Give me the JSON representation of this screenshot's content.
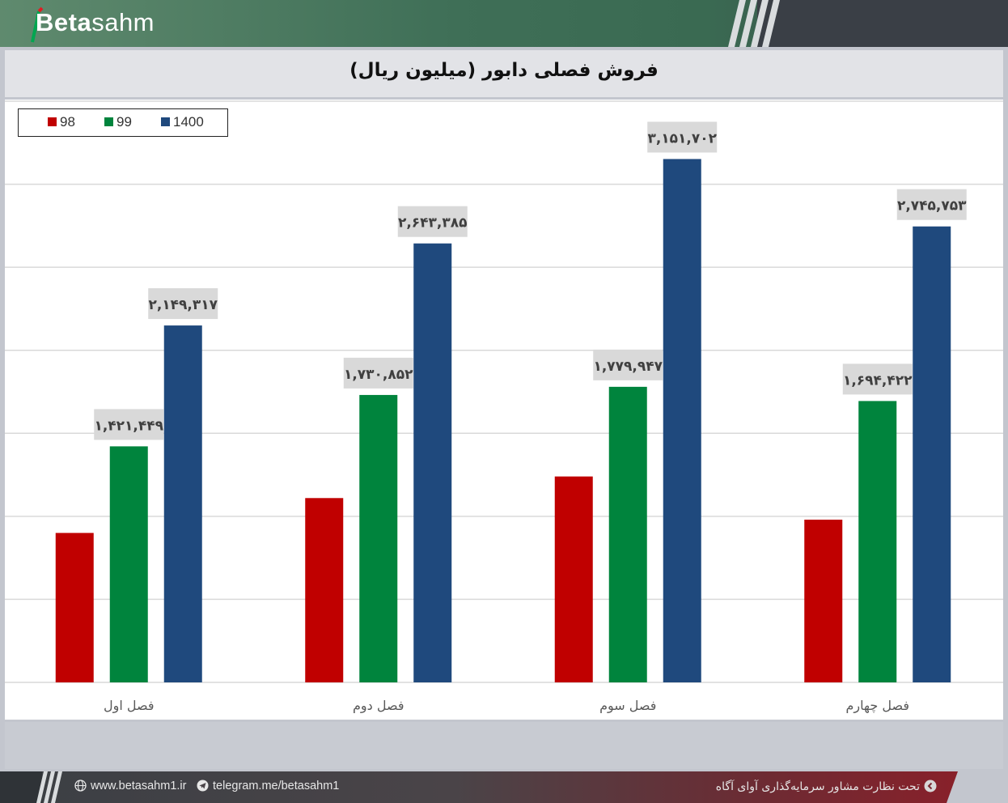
{
  "brand": {
    "logo_prefix": "Beta",
    "logo_suffix": "sahm"
  },
  "colors": {
    "series_98": "#c00000",
    "series_99": "#00843d",
    "series_1400": "#1f497d",
    "label_bg": "#d9d9d9",
    "grid": "#d9d9d9"
  },
  "footer": {
    "website": "www.betasahm1.ir",
    "telegram": "telegram.me/betasahm1",
    "supervision": "تحت نظارت مشاور سرمایه‌گذاری آوای آگاه",
    "icons": [
      "globe-icon",
      "telegram-icon",
      "chevron-left-icon"
    ]
  },
  "chart_data": {
    "type": "bar",
    "title": "فروش فصلی دابور (میلیون ریال)",
    "categories": [
      "فصل اول",
      "فصل دوم",
      "فصل سوم",
      "فصل چهارم"
    ],
    "series": [
      {
        "name": "98",
        "values": [
          900000,
          1110000,
          1240000,
          980000
        ],
        "labels": [
          "",
          "",
          "",
          ""
        ]
      },
      {
        "name": "99",
        "values": [
          1421449,
          1730852,
          1779947,
          1694422
        ],
        "labels": [
          "۱,۴۲۱,۴۴۹",
          "۱,۷۳۰,۸۵۲",
          "۱,۷۷۹,۹۴۷",
          "۱,۶۹۴,۴۲۲"
        ]
      },
      {
        "name": "1400",
        "values": [
          2149317,
          2643385,
          3151702,
          2745753
        ],
        "labels": [
          "۲,۱۴۹,۳۱۷",
          "۲,۶۴۳,۳۸۵",
          "۳,۱۵۱,۷۰۲",
          "۲,۷۴۵,۷۵۳"
        ]
      }
    ],
    "ylim": [
      0,
      3500000
    ],
    "grid": true,
    "legend": "top-left",
    "y_axis_labels_visible": false
  }
}
